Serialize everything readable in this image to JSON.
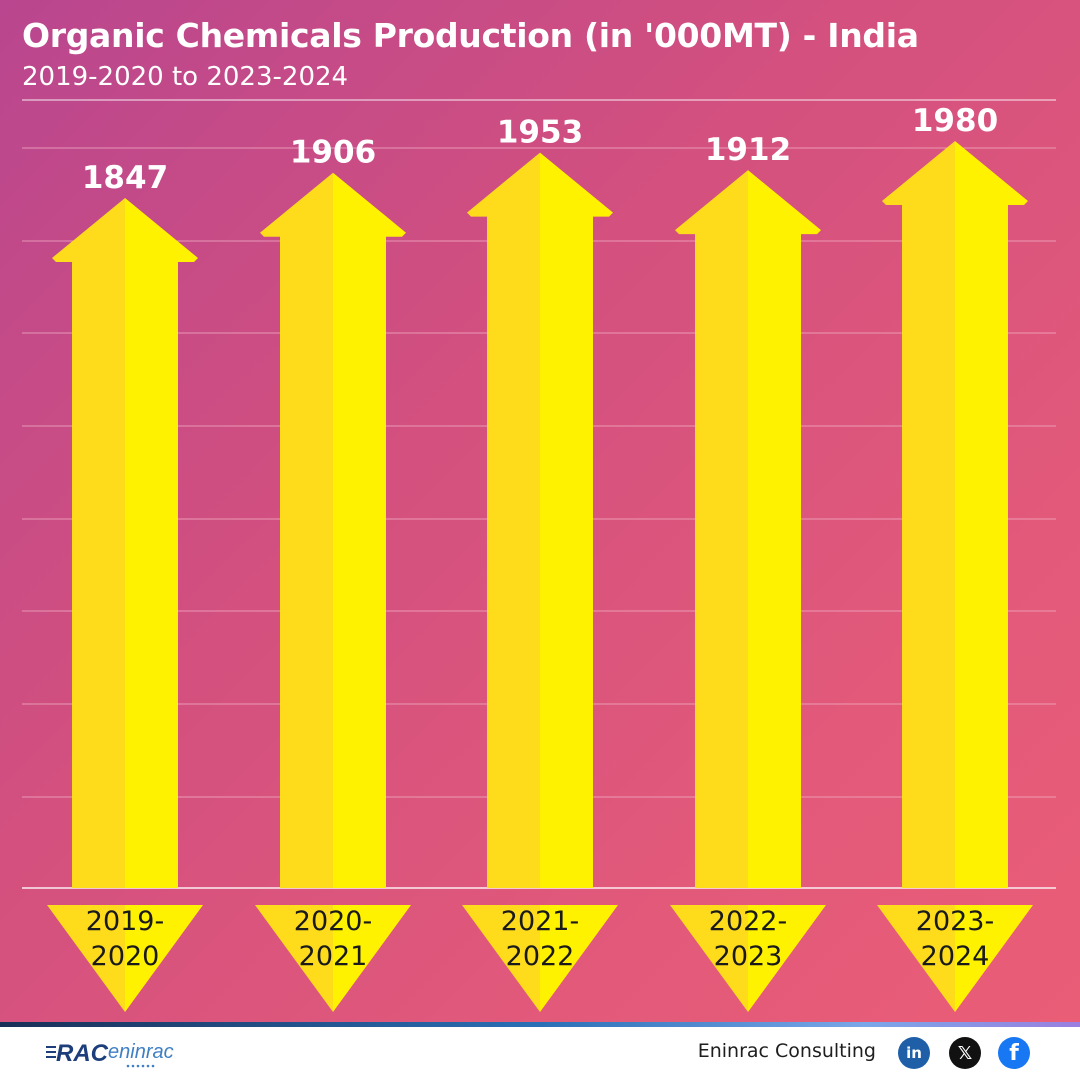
{
  "header": {
    "title": "Organic Chemicals Production (in '000MT) - India",
    "subtitle": "2019-2020 to 2023-2024"
  },
  "chart_data": {
    "type": "bar",
    "title": "Organic Chemicals Production (in '000MT) - India",
    "subtitle": "2019-2020 to 2023-2024",
    "categories": [
      "2019-2020",
      "2020-2021",
      "2021-2022",
      "2022-2023",
      "2023-2024"
    ],
    "category_lines": [
      [
        "2019-",
        "2020"
      ],
      [
        "2020-",
        "2021"
      ],
      [
        "2021-",
        "2022"
      ],
      [
        "2022-",
        "2023"
      ],
      [
        "2023-",
        "2024"
      ]
    ],
    "values": [
      1847,
      1906,
      1953,
      1912,
      1980
    ],
    "xlabel": "",
    "ylabel": "",
    "grid": true,
    "legend": "none",
    "data_labels": true,
    "colors": {
      "arrow_light": "#fff200",
      "arrow_shade": "#fedc1c",
      "label_text": "#ffffff",
      "category_text": "#1a1a1a",
      "grid": "#f2b2c6"
    }
  },
  "footer": {
    "logo_mark": "RAC",
    "logo_text": "eninrac",
    "brand": "Eninrac Consulting",
    "social_icons": [
      "linkedin-icon",
      "x-icon",
      "facebook-icon"
    ],
    "linkedin_glyph": "in",
    "x_glyph": "𝕏",
    "facebook_glyph": "f"
  }
}
